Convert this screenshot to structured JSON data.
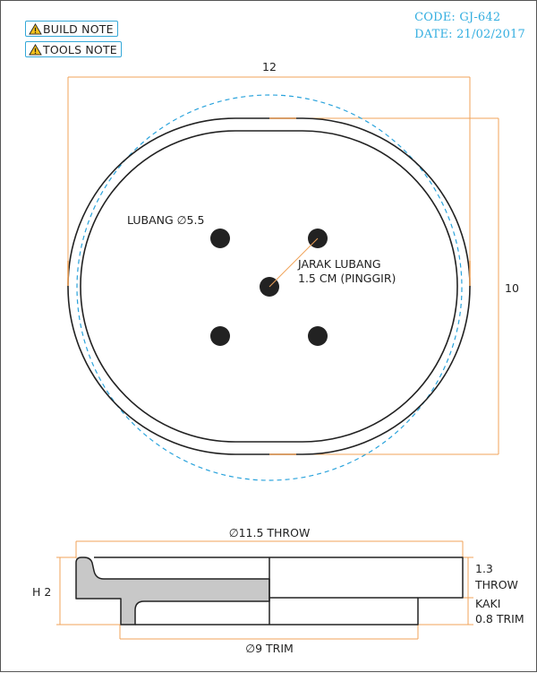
{
  "notes": [
    {
      "label": "BUILD NOTE",
      "icon": "warning-icon"
    },
    {
      "label": "TOOLS NOTE",
      "icon": "warning-icon"
    }
  ],
  "header": {
    "code": "CODE: GJ-642",
    "date": "DATE: 21/02/2017"
  },
  "top_view": {
    "width_dim": "12",
    "height_dim": "10",
    "hole_label": "LUBANG ∅5.5",
    "spacing_label_line1": "JARAK LUBANG",
    "spacing_label_line2": "1.5 CM (PINGGIR)"
  },
  "side_view": {
    "throw_diameter": "∅11.5 THROW",
    "trim_diameter": "∅9 TRIM",
    "height": "H 2",
    "throw_thickness_line1": "1.3",
    "throw_thickness_line2": "THROW",
    "foot_line1": "KAKI",
    "foot_line2": "0.8 TRIM"
  },
  "colors": {
    "outline": "#222222",
    "dimension": "#f0a35a",
    "dashed_circle": "#2aa3dc",
    "section_fill": "#c8c8c8",
    "header_text": "#33aee0"
  }
}
